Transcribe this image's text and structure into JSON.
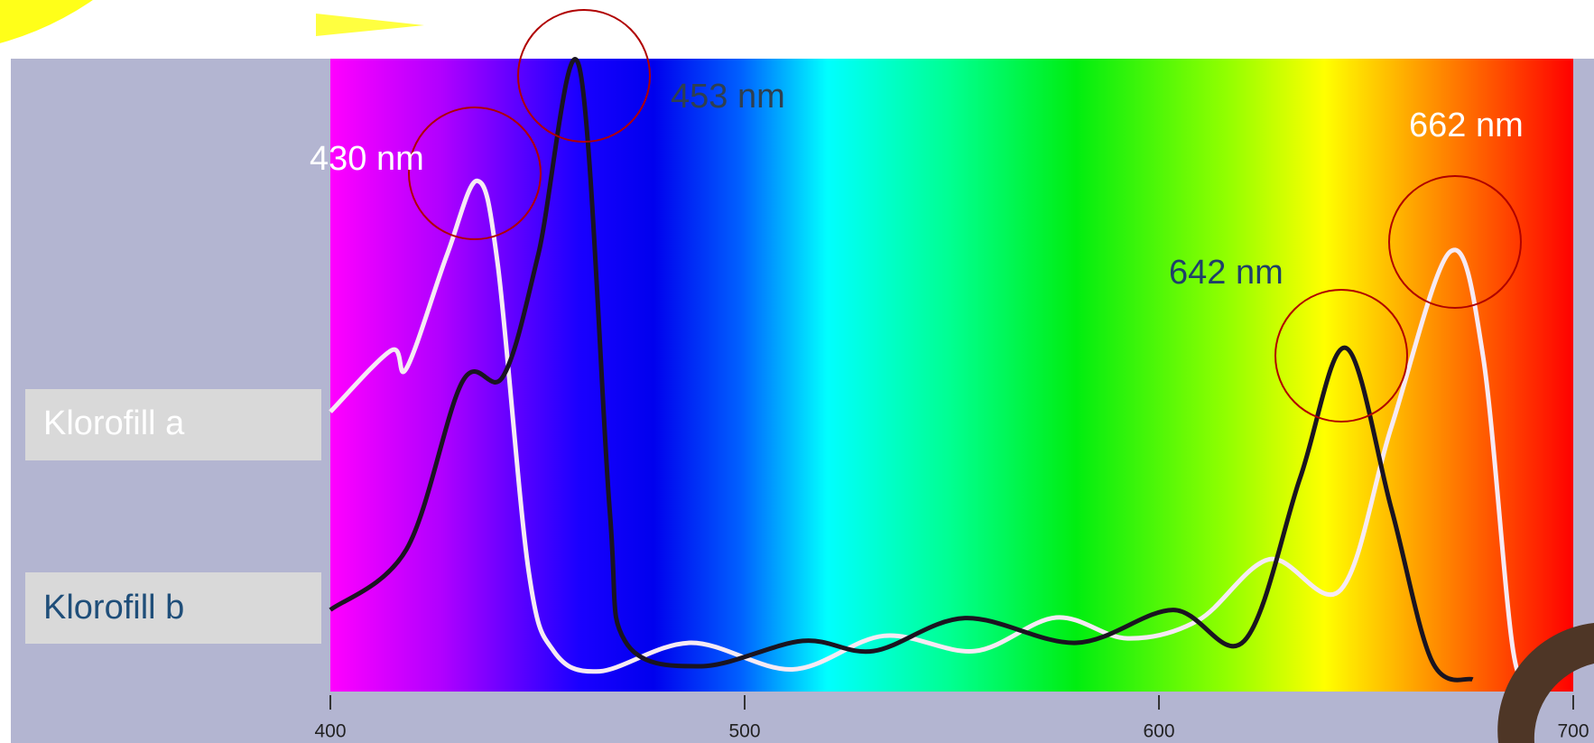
{
  "chart_data": {
    "type": "line",
    "annotations": [
      "430 nm",
      "453 nm",
      "642 nm",
      "662 nm"
    ],
    "xlim": [
      400,
      700
    ],
    "xticks": [
      400,
      500,
      600,
      700
    ],
    "ylim": [
      0,
      100
    ],
    "series": [
      {
        "name": "Klorofill a",
        "color": "#f6eaf4",
        "x": [
          400,
          414.7,
          418.4,
          428.2,
          435.5,
          440.4,
          447.8,
          453.9,
          465,
          487,
          511.5,
          533.6,
          555.6,
          575.2,
          592.4,
          609.6,
          626.7,
          643.9,
          656.1,
          670.3,
          678.2,
          685.5,
          690.4
        ],
        "values": [
          44.2,
          53.9,
          51.1,
          69.1,
          80.7,
          67.5,
          19.3,
          6.4,
          3.2,
          7.7,
          3.5,
          8.8,
          6.4,
          11.7,
          8.4,
          11.3,
          20.9,
          16.1,
          41.8,
          69.5,
          53.1,
          6.4,
          2.4
        ]
      },
      {
        "name": "Klorofill b",
        "color": "#1a1420",
        "x": [
          400,
          418.4,
          431.9,
          441.7,
          450.2,
          460,
          467.4,
          471.1,
          489.5,
          514,
          531.1,
          553.2,
          580.1,
          603.4,
          620.6,
          634.1,
          645.1,
          656.1,
          665.9,
          675.7
        ],
        "values": [
          12.9,
          22.5,
          49.0,
          49.8,
          69.1,
          98.9,
          28.9,
          8.0,
          4.0,
          8.0,
          6.4,
          11.6,
          7.7,
          12.9,
          8.0,
          33.8,
          54.3,
          28.9,
          4.8,
          1.9
        ]
      }
    ]
  }
}
